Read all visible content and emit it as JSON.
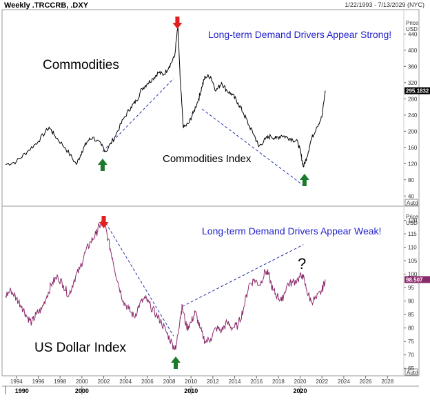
{
  "header": {
    "title": "Weekly .TRCCRB, .DXY",
    "range": "1/22/1993 - 7/13/2029 (NYC)"
  },
  "colors": {
    "commodities_line": "#000000",
    "dollar_line": "#8b2a6b",
    "trendline": "#2233aa",
    "arrow_up": "#1a7a2a",
    "arrow_down": "#e02020",
    "annotation": "#2222cc",
    "question": "#e02020",
    "last_price_bg": "#000000",
    "dollar_price_bg": "#8b2a6b"
  },
  "chart_data": [
    {
      "type": "line",
      "panel": "top",
      "title": "Commodities",
      "series_label": "Commodities Index",
      "annotation": "Long-term Demand Drivers Appear Strong!",
      "axis_unit_label": "Price\nUSD",
      "price_label": "Price",
      "currency_label": "USD",
      "auto_label": "Auto",
      "last_value": "295.1832",
      "ylim": [
        20,
        490
      ],
      "yticks": [
        40,
        80,
        120,
        160,
        200,
        240,
        280,
        320,
        360,
        400,
        440
      ],
      "x": [
        1993.0,
        1994.0,
        1995.0,
        1996.0,
        1997.0,
        1997.5,
        1998.5,
        1999.5,
        2000.0,
        2000.5,
        2001.0,
        2001.8,
        2002.2,
        2003.0,
        2003.8,
        2004.5,
        2005.0,
        2005.5,
        2006.0,
        2006.5,
        2007.0,
        2007.5,
        2008.0,
        2008.5,
        2008.8,
        2009.0,
        2009.3,
        2009.8,
        2010.2,
        2010.7,
        2011.0,
        2011.3,
        2011.8,
        2012.3,
        2012.8,
        2013.3,
        2013.8,
        2014.3,
        2014.8,
        2015.3,
        2015.8,
        2016.2,
        2016.8,
        2017.3,
        2017.8,
        2018.3,
        2018.8,
        2019.3,
        2019.8,
        2020.1,
        2020.3,
        2020.6,
        2021.0,
        2021.5,
        2022.0,
        2022.3
      ],
      "values": [
        118,
        125,
        150,
        175,
        210,
        190,
        158,
        118,
        150,
        175,
        185,
        165,
        150,
        185,
        230,
        260,
        275,
        305,
        318,
        330,
        345,
        340,
        360,
        385,
        460,
        330,
        208,
        220,
        245,
        280,
        310,
        335,
        335,
        300,
        320,
        300,
        290,
        270,
        245,
        215,
        190,
        162,
        180,
        188,
        182,
        190,
        185,
        180,
        172,
        140,
        112,
        135,
        178,
        210,
        235,
        300
      ]
    },
    {
      "type": "line",
      "panel": "bottom",
      "title": "US Dollar Index",
      "annotation": "Long-term Demand Drivers Appear Weak!",
      "question": "?",
      "price_label": "Price",
      "currency_label": "USD",
      "auto_label": "Auto",
      "last_value": "98.507",
      "ylim": [
        63,
        124
      ],
      "yticks": [
        65,
        70,
        75,
        80,
        85,
        90,
        95,
        100,
        105,
        110,
        115,
        120
      ],
      "x": [
        1993.0,
        1993.5,
        1994.0,
        1994.5,
        1995.0,
        1995.4,
        1995.8,
        1996.3,
        1996.8,
        1997.3,
        1997.8,
        1998.3,
        1998.8,
        1999.3,
        1999.8,
        2000.3,
        2000.8,
        2001.3,
        2001.6,
        2002.0,
        2002.4,
        2002.8,
        2003.3,
        2003.8,
        2004.3,
        2004.8,
        2005.3,
        2005.8,
        2006.3,
        2006.8,
        2007.3,
        2007.8,
        2008.3,
        2008.6,
        2009.0,
        2009.2,
        2009.6,
        2010.0,
        2010.4,
        2010.8,
        2011.3,
        2011.8,
        2012.3,
        2012.8,
        2013.3,
        2013.8,
        2014.3,
        2014.8,
        2015.3,
        2015.8,
        2016.3,
        2016.8,
        2017.1,
        2017.5,
        2017.9,
        2018.3,
        2018.8,
        2019.3,
        2019.8,
        2020.2,
        2020.6,
        2021.0,
        2021.5,
        2022.0,
        2022.3
      ],
      "values": [
        92,
        94,
        91,
        88,
        84,
        82,
        85,
        87,
        92,
        97,
        99,
        96,
        92,
        98,
        102,
        108,
        112,
        115,
        118,
        120,
        113,
        106,
        97,
        90,
        87,
        84,
        89,
        91,
        88,
        85,
        82,
        78,
        74,
        72,
        84,
        88,
        80,
        82,
        86,
        80,
        75,
        76,
        80,
        79,
        82,
        80,
        81,
        87,
        96,
        98,
        96,
        101,
        100,
        94,
        92,
        90,
        96,
        97,
        98,
        100,
        94,
        90,
        91,
        94,
        98
      ]
    }
  ],
  "x_axis": {
    "min": 1993.0,
    "max": 2029.5,
    "year_ticks": [
      "1994",
      "1996",
      "1998",
      "2000",
      "2002",
      "2004",
      "2006",
      "2008",
      "2010",
      "2012",
      "2014",
      "2016",
      "2018",
      "2020",
      "2022",
      "2024",
      "2026",
      "2028"
    ],
    "decade_labels": [
      "1990",
      "2000",
      "2010",
      "2020"
    ]
  },
  "annotations": {
    "top_title": "Commodities",
    "top_series": "Commodities Index",
    "top_note": "Long-term Demand Drivers Appear Strong!",
    "bottom_title": "US Dollar Index",
    "bottom_note": "Long-term Demand Drivers Appear Weak!",
    "question": "?"
  },
  "icons": [
    "arrow-down-icon",
    "arrow-up-icon"
  ]
}
